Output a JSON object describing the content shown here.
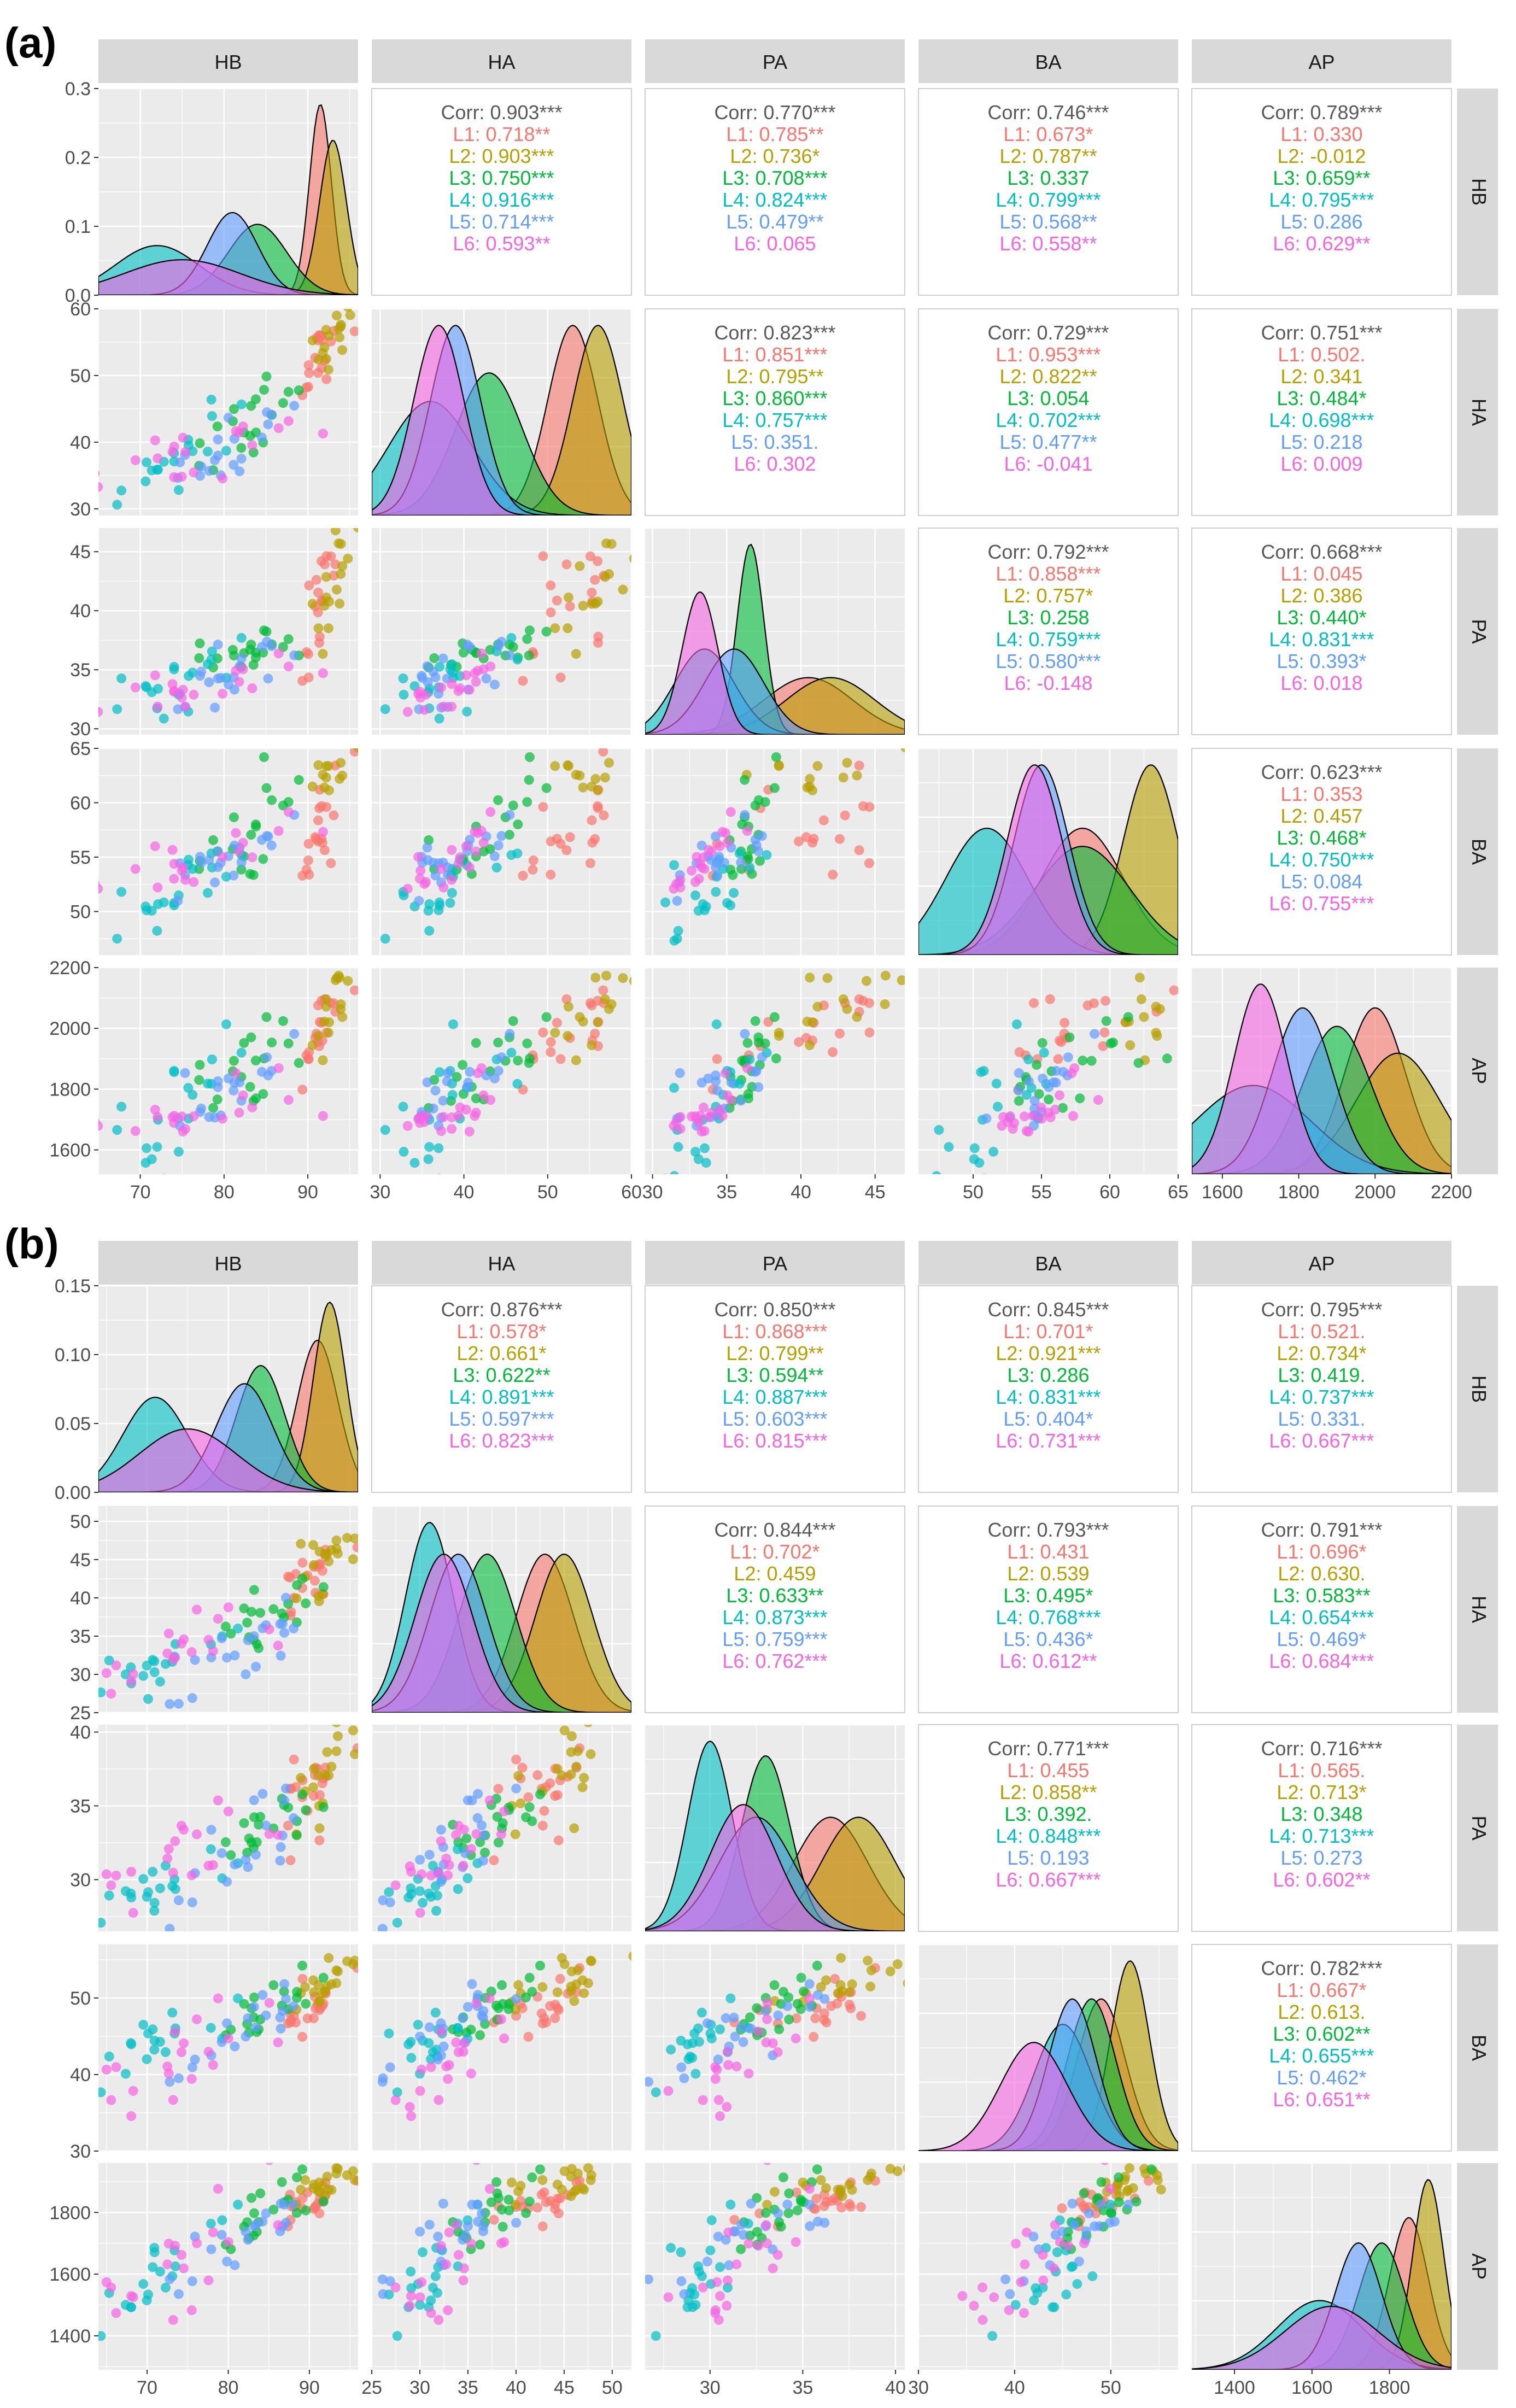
{
  "colors": {
    "L1": "#F8766D",
    "L2": "#B79F00",
    "L3": "#00BA38",
    "L4": "#00BFC4",
    "L5": "#619CFF",
    "L6": "#F564E3",
    "corr": "#595959",
    "panel": "#EBEBEB",
    "strip": "#D9D9D9"
  },
  "chart_data": [
    {
      "type": "scatter",
      "panel_label": "(a)",
      "variables": [
        "HB",
        "HA",
        "PA",
        "BA",
        "AP"
      ],
      "groups": [
        "L1",
        "L2",
        "L3",
        "L4",
        "L5",
        "L6"
      ],
      "axes": {
        "HB": {
          "range": [
            65,
            96
          ],
          "ticks": [
            70,
            80,
            90
          ]
        },
        "HA": {
          "range": [
            29,
            60
          ],
          "ticks": [
            30,
            40,
            50,
            60
          ]
        },
        "PA": {
          "range": [
            29.5,
            47
          ],
          "ticks": [
            30,
            35,
            40,
            45
          ]
        },
        "BA": {
          "range": [
            46,
            65
          ],
          "ticks": [
            50,
            55,
            60,
            65
          ]
        },
        "AP": {
          "range": [
            1520,
            2200
          ],
          "ticks": [
            1600,
            1800,
            2000,
            2200
          ]
        }
      },
      "density_ylim": [
        0,
        0.3
      ],
      "density_ticks": [
        "0.0",
        "0.1",
        "0.2",
        "0.3"
      ],
      "group_stats": {
        "HB": {
          "L1": [
            91.5,
            1.3
          ],
          "L2": [
            93,
            1.6
          ],
          "L3": [
            84,
            3.5
          ],
          "L4": [
            72,
            5
          ],
          "L5": [
            81,
            3
          ],
          "L6": [
            75,
            7
          ]
        },
        "HA": {
          "L1": [
            53,
            3
          ],
          "L2": [
            56,
            3
          ],
          "L3": [
            43,
            4
          ],
          "L4": [
            36,
            5
          ],
          "L5": [
            39,
            3
          ],
          "L6": [
            37,
            3
          ]
        },
        "PA": {
          "L1": [
            40.5,
            3
          ],
          "L2": [
            42,
            3
          ],
          "L3": [
            36.6,
            0.9
          ],
          "L4": [
            33.5,
            2
          ],
          "L5": [
            35.5,
            2
          ],
          "L6": [
            33.2,
            1.2
          ]
        },
        "BA": {
          "L1": [
            58,
            3
          ],
          "L2": [
            63,
            2
          ],
          "L3": [
            58,
            3.5
          ],
          "L4": [
            51,
            3
          ],
          "L5": [
            55,
            2
          ],
          "L6": [
            54.5,
            2
          ]
        },
        "AP": {
          "L1": [
            2000,
            80
          ],
          "L2": [
            2060,
            110
          ],
          "L3": [
            1900,
            90
          ],
          "L4": [
            1680,
            150
          ],
          "L5": [
            1810,
            80
          ],
          "L6": [
            1700,
            70
          ]
        }
      },
      "correlations": {
        "HB-HA": {
          "corr": "0.903***",
          "L1": "0.718**",
          "L2": "0.903***",
          "L3": "0.750***",
          "L4": "0.916***",
          "L5": "0.714***",
          "L6": "0.593**"
        },
        "HB-PA": {
          "corr": "0.770***",
          "L1": "0.785**",
          "L2": "0.736*",
          "L3": "0.708***",
          "L4": "0.824***",
          "L5": "0.479**",
          "L6": "0.065"
        },
        "HB-BA": {
          "corr": "0.746***",
          "L1": "0.673*",
          "L2": "0.787**",
          "L3": "0.337",
          "L4": "0.799***",
          "L5": "0.568**",
          "L6": "0.558**"
        },
        "HB-AP": {
          "corr": "0.789***",
          "L1": "0.330",
          "L2": "-0.012",
          "L3": "0.659**",
          "L4": "0.795***",
          "L5": "0.286",
          "L6": "0.629**"
        },
        "HA-PA": {
          "corr": "0.823***",
          "L1": "0.851***",
          "L2": "0.795**",
          "L3": "0.860***",
          "L4": "0.757***",
          "L5": "0.351.",
          "L6": "0.302"
        },
        "HA-BA": {
          "corr": "0.729***",
          "L1": "0.953***",
          "L2": "0.822**",
          "L3": "0.054",
          "L4": "0.702***",
          "L5": "0.477**",
          "L6": "-0.041"
        },
        "HA-AP": {
          "corr": "0.751***",
          "L1": "0.502.",
          "L2": "0.341",
          "L3": "0.484*",
          "L4": "0.698***",
          "L5": "0.218",
          "L6": "0.009"
        },
        "PA-BA": {
          "corr": "0.792***",
          "L1": "0.858***",
          "L2": "0.757*",
          "L3": "0.258",
          "L4": "0.759***",
          "L5": "0.580***",
          "L6": "-0.148"
        },
        "PA-AP": {
          "corr": "0.668***",
          "L1": "0.045",
          "L2": "0.386",
          "L3": "0.440*",
          "L4": "0.831***",
          "L5": "0.393*",
          "L6": "0.018"
        },
        "BA-AP": {
          "corr": "0.623***",
          "L1": "0.353",
          "L2": "0.457",
          "L3": "0.468*",
          "L4": "0.750***",
          "L5": "0.084",
          "L6": "0.755***"
        }
      }
    },
    {
      "type": "scatter",
      "panel_label": "(b)",
      "variables": [
        "HB",
        "HA",
        "PA",
        "BA",
        "AP"
      ],
      "groups": [
        "L1",
        "L2",
        "L3",
        "L4",
        "L5",
        "L6"
      ],
      "axes": {
        "HB": {
          "range": [
            64,
            96
          ],
          "ticks": [
            70,
            80,
            90
          ]
        },
        "HA": {
          "range": [
            25,
            52
          ],
          "ticks": [
            25,
            30,
            35,
            40,
            45,
            50
          ]
        },
        "PA": {
          "range": [
            26.5,
            40.5
          ],
          "ticks": [
            30,
            35,
            40
          ]
        },
        "BA": {
          "range": [
            30,
            57
          ],
          "ticks": [
            30,
            40,
            50
          ]
        },
        "AP": {
          "range": [
            1290,
            1960
          ],
          "ticks": [
            1400,
            1600,
            1800
          ]
        }
      },
      "density_ylim": [
        0,
        0.15
      ],
      "density_ticks": [
        "0.00",
        "0.05",
        "0.10",
        "0.15"
      ],
      "group_stats": {
        "HB": {
          "L1": [
            91,
            2.5
          ],
          "L2": [
            92.5,
            2
          ],
          "L3": [
            84,
            3
          ],
          "L4": [
            71,
            4
          ],
          "L5": [
            82,
            3.5
          ],
          "L6": [
            75,
            6
          ]
        },
        "HA": {
          "L1": [
            43,
            3
          ],
          "L2": [
            45,
            3
          ],
          "L3": [
            37,
            3
          ],
          "L4": [
            31,
            2.5
          ],
          "L5": [
            34,
            3
          ],
          "L6": [
            32.5,
            3
          ]
        },
        "PA": {
          "L1": [
            36.5,
            2
          ],
          "L2": [
            38,
            2
          ],
          "L3": [
            33,
            1.3
          ],
          "L4": [
            30,
            1.2
          ],
          "L5": [
            32.5,
            2
          ],
          "L6": [
            31.8,
            1.8
          ]
        },
        "BA": {
          "L1": [
            49,
            2.5
          ],
          "L2": [
            52,
            2
          ],
          "L3": [
            48,
            2.5
          ],
          "L4": [
            45,
            3
          ],
          "L5": [
            46,
            2.5
          ],
          "L6": [
            42,
            3.5
          ]
        },
        "AP": {
          "L1": [
            1850,
            50
          ],
          "L2": [
            1900,
            40
          ],
          "L3": [
            1780,
            60
          ],
          "L4": [
            1620,
            110
          ],
          "L5": [
            1720,
            60
          ],
          "L6": [
            1650,
            120
          ]
        }
      },
      "correlations": {
        "HB-HA": {
          "corr": "0.876***",
          "L1": "0.578*",
          "L2": "0.661*",
          "L3": "0.622**",
          "L4": "0.891***",
          "L5": "0.597***",
          "L6": "0.823***"
        },
        "HB-PA": {
          "corr": "0.850***",
          "L1": "0.868***",
          "L2": "0.799**",
          "L3": "0.594**",
          "L4": "0.887***",
          "L5": "0.603***",
          "L6": "0.815***"
        },
        "HB-BA": {
          "corr": "0.845***",
          "L1": "0.701*",
          "L2": "0.921***",
          "L3": "0.286",
          "L4": "0.831***",
          "L5": "0.404*",
          "L6": "0.731***"
        },
        "HB-AP": {
          "corr": "0.795***",
          "L1": "0.521.",
          "L2": "0.734*",
          "L3": "0.419.",
          "L4": "0.737***",
          "L5": "0.331.",
          "L6": "0.667***"
        },
        "HA-PA": {
          "corr": "0.844***",
          "L1": "0.702*",
          "L2": "0.459",
          "L3": "0.633**",
          "L4": "0.873***",
          "L5": "0.759***",
          "L6": "0.762***"
        },
        "HA-BA": {
          "corr": "0.793***",
          "L1": "0.431",
          "L2": "0.539",
          "L3": "0.495*",
          "L4": "0.768***",
          "L5": "0.436*",
          "L6": "0.612**"
        },
        "HA-AP": {
          "corr": "0.791***",
          "L1": "0.696*",
          "L2": "0.630.",
          "L3": "0.583**",
          "L4": "0.654***",
          "L5": "0.469*",
          "L6": "0.684***"
        },
        "PA-BA": {
          "corr": "0.771***",
          "L1": "0.455",
          "L2": "0.858**",
          "L3": "0.392.",
          "L4": "0.848***",
          "L5": "0.193",
          "L6": "0.667***"
        },
        "PA-AP": {
          "corr": "0.716***",
          "L1": "0.565.",
          "L2": "0.713*",
          "L3": "0.348",
          "L4": "0.713***",
          "L5": "0.273",
          "L6": "0.602**"
        },
        "BA-AP": {
          "corr": "0.782***",
          "L1": "0.667*",
          "L2": "0.613.",
          "L3": "0.602**",
          "L4": "0.655***",
          "L5": "0.462*",
          "L6": "0.651**"
        }
      }
    }
  ]
}
